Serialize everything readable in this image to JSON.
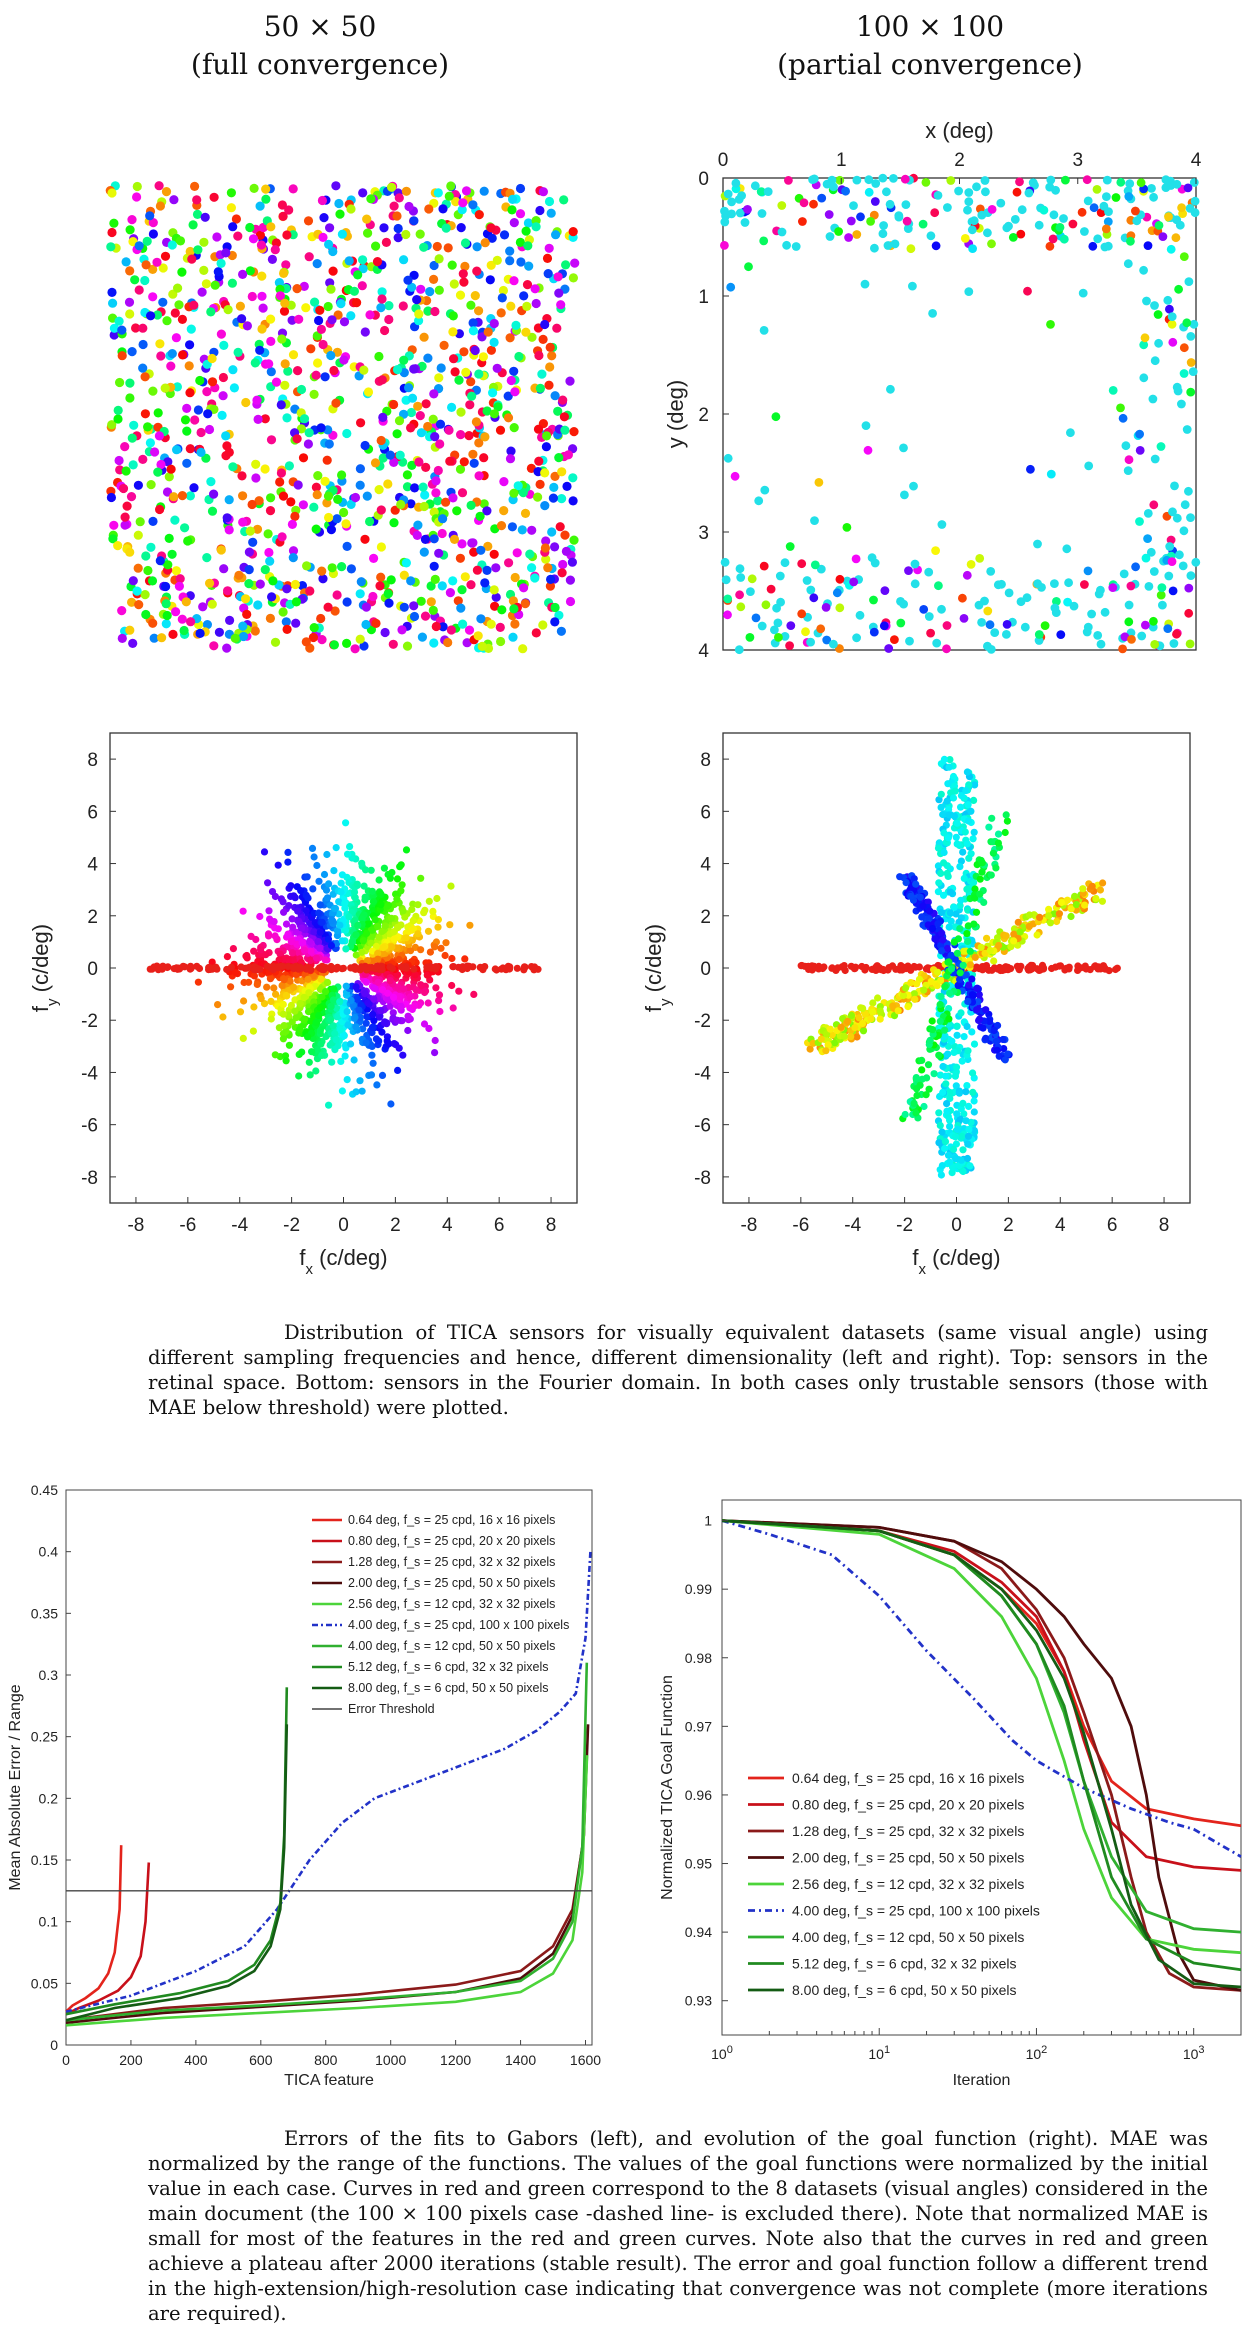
{
  "titles": {
    "left_line1": "50 × 50",
    "left_line2": "(full convergence)",
    "right_line1": "100 × 100",
    "right_line2": "(partial convergence)"
  },
  "captions": {
    "figure1": "Distribution of TICA sensors for visually equivalent datasets (same visual angle) using different sampling frequencies and hence, different dimensionality (left and right). Top: sensors in the retinal space. Bottom: sensors in the Fourier domain. In both cases only trustable sensors (those with MAE below threshold) were plotted.",
    "figure2": "Errors of the fits to Gabors (left), and evolution of the goal function (right). MAE was normalized by the range of the functions. The values of the goal functions were normalized by the initial value in each case. Curves in red and green correspond to the 8 datasets (visual angles) considered in the main document (the 100 × 100 pixels case -dashed line- is excluded there). Note that normalized MAE is small for most of the features in the red and green curves. Note also that the curves in red and green achieve a plateau after 2000 iterations (stable result). The error and goal function follow a different trend in the high-extension/high-resolution case indicating that convergence was not complete (more iterations are required)."
  },
  "colors": {
    "d1": "#e3241c",
    "d2": "#c8101a",
    "d3": "#8b1a1a",
    "d4": "#4f0c0c",
    "d5": "#4cd43a",
    "d6": "#2232c8",
    "d7": "#30b030",
    "d8": "#208a20",
    "d9": "#145c14",
    "threshold": "#444444"
  },
  "chart_data": [
    {
      "id": "retinal_50",
      "type": "scatter",
      "title": "50 × 50 (full convergence)",
      "xlabel": "",
      "ylabel": "",
      "xlim": [
        0,
        4
      ],
      "ylim": [
        0,
        4
      ],
      "axes_visible": false,
      "description_of_points": "dense uniform field of sensors colored by orientation (hue wheel)",
      "n_points": 1300
    },
    {
      "id": "retinal_100",
      "type": "scatter",
      "title": "100 × 100 (partial convergence)",
      "xlabel": "x (deg)",
      "ylabel": "y (deg)",
      "xlim": [
        0,
        4
      ],
      "ylim": [
        4,
        0
      ],
      "xticks": [
        "0",
        "1",
        "2",
        "3",
        "4"
      ],
      "yticks": [
        "0",
        "1",
        "2",
        "3",
        "4"
      ],
      "n_points": 480,
      "distribution": "concentrated along top band (y 0–0.6), right edge (x 3.4–4) and bottom band (y 3.2–4), sparse center"
    },
    {
      "id": "fourier_50",
      "type": "scatter",
      "xlabel": "f_x (c/deg)",
      "ylabel": "f_y (c/deg)",
      "xlim": [
        -9,
        9
      ],
      "ylim": [
        -9,
        9
      ],
      "xticks": [
        "-8",
        "-6",
        "-4",
        "-2",
        "0",
        "2",
        "4",
        "6",
        "8"
      ],
      "yticks": [
        "8",
        "6",
        "4",
        "2",
        "0",
        "-2",
        "-4",
        "-6",
        "-8"
      ],
      "distribution": "isotropic cloud radius ≈ 3–4 c/deg, colored by orientation; horizontal red line of points to ±7.5"
    },
    {
      "id": "fourier_100",
      "type": "scatter",
      "xlabel": "f_x (c/deg)",
      "ylabel": "f_y (c/deg)",
      "xlim": [
        -9,
        9
      ],
      "ylim": [
        -9,
        9
      ],
      "xticks": [
        "-8",
        "-6",
        "-4",
        "-2",
        "0",
        "2",
        "4",
        "6",
        "8"
      ],
      "yticks": [
        "8",
        "6",
        "4",
        "2",
        "0",
        "-2",
        "-4",
        "-6",
        "-8"
      ],
      "distribution": "cross-shaped: vertical cyan band to ±8, horizontal red line to ±6, diagonal yellow-green and blue arms"
    },
    {
      "id": "mae",
      "type": "line",
      "xlabel": "TICA feature",
      "ylabel": "Mean Absolute Error / Range",
      "xlim": [
        0,
        1620
      ],
      "ylim": [
        0,
        0.45
      ],
      "xticks": [
        "0",
        "200",
        "400",
        "600",
        "800",
        "1000",
        "1200",
        "1400",
        "1600"
      ],
      "yticks": [
        "0",
        "0.05",
        "0.1",
        "0.15",
        "0.2",
        "0.25",
        "0.3",
        "0.35",
        "0.4",
        "0.45"
      ],
      "threshold": 0.125,
      "series": [
        {
          "name": "0.64 deg, f_s = 25 cpd, 16 x 16 pixels",
          "color": "#e3241c",
          "dash": false,
          "x": [
            0,
            20,
            60,
            100,
            130,
            150,
            165,
            170
          ],
          "y": [
            0.027,
            0.032,
            0.038,
            0.046,
            0.058,
            0.075,
            0.11,
            0.162
          ]
        },
        {
          "name": "0.80 deg, f_s = 25 cpd, 20 x 20 pixels",
          "color": "#c8101a",
          "dash": false,
          "x": [
            0,
            40,
            100,
            160,
            200,
            230,
            245,
            255
          ],
          "y": [
            0.025,
            0.03,
            0.036,
            0.044,
            0.055,
            0.072,
            0.1,
            0.148
          ]
        },
        {
          "name": "1.28 deg, f_s = 25 cpd, 32 x 32 pixels",
          "color": "#8b1a1a",
          "dash": false,
          "x": [
            0,
            300,
            600,
            900,
            1200,
            1400,
            1500,
            1560,
            1590,
            1600
          ],
          "y": [
            0.02,
            0.03,
            0.035,
            0.041,
            0.049,
            0.06,
            0.08,
            0.11,
            0.16,
            0.21
          ]
        },
        {
          "name": "2.00 deg, f_s = 25 cpd, 50 x 50 pixels",
          "color": "#4f0c0c",
          "dash": false,
          "x": [
            0,
            300,
            600,
            900,
            1200,
            1400,
            1500,
            1560,
            1595,
            1608
          ],
          "y": [
            0.018,
            0.026,
            0.031,
            0.036,
            0.043,
            0.054,
            0.074,
            0.105,
            0.17,
            0.26
          ]
        },
        {
          "name": "2.56 deg, f_s = 12 cpd, 32 x 32 pixels",
          "color": "#4cd43a",
          "dash": false,
          "x": [
            0,
            300,
            600,
            900,
            1200,
            1400,
            1500,
            1560,
            1590,
            1605
          ],
          "y": [
            0.016,
            0.022,
            0.026,
            0.03,
            0.035,
            0.043,
            0.058,
            0.085,
            0.14,
            0.235
          ]
        },
        {
          "name": "4.00 deg, f_s = 25 cpd, 100 x 100 pixels",
          "color": "#2232c8",
          "dash": true,
          "x": [
            0,
            200,
            400,
            550,
            650,
            750,
            850,
            950,
            1050,
            1200,
            1350,
            1450,
            1520,
            1570,
            1600,
            1615
          ],
          "y": [
            0.027,
            0.04,
            0.06,
            0.08,
            0.11,
            0.15,
            0.18,
            0.2,
            0.21,
            0.225,
            0.24,
            0.255,
            0.27,
            0.285,
            0.33,
            0.4
          ]
        },
        {
          "name": "4.00 deg, f_s = 12 cpd, 50 x 50 pixels",
          "color": "#30b030",
          "dash": false,
          "x": [
            0,
            300,
            600,
            900,
            1200,
            1400,
            1500,
            1560,
            1590,
            1604
          ],
          "y": [
            0.02,
            0.028,
            0.032,
            0.037,
            0.043,
            0.052,
            0.07,
            0.1,
            0.16,
            0.31
          ]
        },
        {
          "name": "5.12 deg, f_s = 6 cpd, 32 x 32 pixels",
          "color": "#208a20",
          "dash": false,
          "x": [
            0,
            150,
            350,
            500,
            580,
            630,
            660,
            672,
            680
          ],
          "y": [
            0.025,
            0.033,
            0.042,
            0.052,
            0.065,
            0.085,
            0.115,
            0.17,
            0.29
          ]
        },
        {
          "name": "8.00 deg, f_s = 6 cpd, 50 x 50 pixels",
          "color": "#145c14",
          "dash": false,
          "x": [
            0,
            150,
            350,
            500,
            580,
            630,
            660,
            672,
            680
          ],
          "y": [
            0.02,
            0.03,
            0.038,
            0.048,
            0.06,
            0.08,
            0.11,
            0.16,
            0.26
          ]
        },
        {
          "name": "Error Threshold",
          "color": "#444444",
          "dash": false,
          "x": [
            0,
            1620
          ],
          "y": [
            0.125,
            0.125
          ]
        }
      ]
    },
    {
      "id": "goal",
      "type": "line",
      "xlabel": "Iteration",
      "ylabel": "Normalized TICA Goal Function",
      "xscale": "log",
      "xlim": [
        1,
        2000
      ],
      "ylim": [
        0.925,
        1.003
      ],
      "xticks": [
        "10^0",
        "10^1",
        "10^2",
        "10^3"
      ],
      "yticks": [
        "1",
        "0.99",
        "0.98",
        "0.97",
        "0.96",
        "0.95",
        "0.94",
        "0.93"
      ],
      "series": [
        {
          "name": "0.64 deg, f_s = 25 cpd, 16 x 16 pixels",
          "color": "#e3241c",
          "dash": false,
          "x": [
            1,
            10,
            30,
            60,
            100,
            150,
            200,
            300,
            500,
            1000,
            2000
          ],
          "y": [
            1,
            0.9985,
            0.995,
            0.99,
            0.985,
            0.978,
            0.97,
            0.962,
            0.958,
            0.9565,
            0.9555
          ]
        },
        {
          "name": "0.80 deg, f_s = 25 cpd, 20 x 20 pixels",
          "color": "#c8101a",
          "dash": false,
          "x": [
            1,
            10,
            30,
            60,
            100,
            150,
            200,
            300,
            500,
            1000,
            2000
          ],
          "y": [
            1,
            0.9985,
            0.9955,
            0.991,
            0.986,
            0.978,
            0.968,
            0.956,
            0.951,
            0.9495,
            0.949
          ]
        },
        {
          "name": "1.28 deg, f_s = 25 cpd, 32 x 32 pixels",
          "color": "#8b1a1a",
          "dash": false,
          "x": [
            1,
            10,
            30,
            60,
            100,
            150,
            200,
            300,
            400,
            500,
            700,
            1000,
            2000
          ],
          "y": [
            1,
            0.999,
            0.997,
            0.993,
            0.987,
            0.98,
            0.972,
            0.96,
            0.948,
            0.94,
            0.934,
            0.932,
            0.9315
          ]
        },
        {
          "name": "2.00 deg, f_s = 25 cpd, 50 x 50 pixels",
          "color": "#4f0c0c",
          "dash": false,
          "x": [
            1,
            10,
            30,
            60,
            100,
            150,
            200,
            300,
            400,
            500,
            600,
            800,
            1000,
            2000
          ],
          "y": [
            1,
            0.999,
            0.997,
            0.994,
            0.99,
            0.986,
            0.982,
            0.977,
            0.97,
            0.96,
            0.948,
            0.937,
            0.933,
            0.9315
          ]
        },
        {
          "name": "2.56 deg, f_s = 12 cpd, 32 x 32 pixels",
          "color": "#4cd43a",
          "dash": false,
          "x": [
            1,
            10,
            30,
            60,
            100,
            150,
            200,
            300,
            500,
            1000,
            2000
          ],
          "y": [
            1,
            0.998,
            0.993,
            0.986,
            0.977,
            0.965,
            0.955,
            0.945,
            0.939,
            0.9375,
            0.937
          ]
        },
        {
          "name": "4.00 deg, f_s = 25 cpd, 100 x 100 pixels",
          "color": "#2232c8",
          "dash": true,
          "x": [
            1,
            2,
            5,
            10,
            20,
            40,
            70,
            100,
            200,
            400,
            700,
            1000,
            2000
          ],
          "y": [
            1,
            0.998,
            0.995,
            0.989,
            0.981,
            0.974,
            0.968,
            0.965,
            0.961,
            0.958,
            0.956,
            0.955,
            0.951
          ]
        },
        {
          "name": "4.00 deg, f_s = 12 cpd, 50 x 50 pixels",
          "color": "#30b030",
          "dash": false,
          "x": [
            1,
            10,
            30,
            60,
            100,
            150,
            200,
            300,
            500,
            1000,
            2000
          ],
          "y": [
            1,
            0.9985,
            0.995,
            0.989,
            0.982,
            0.972,
            0.962,
            0.951,
            0.943,
            0.9405,
            0.94
          ]
        },
        {
          "name": "5.12 deg, f_s = 6 cpd, 32 x 32 pixels",
          "color": "#208a20",
          "dash": false,
          "x": [
            1,
            10,
            30,
            60,
            100,
            150,
            200,
            300,
            500,
            1000,
            2000
          ],
          "y": [
            1,
            0.9985,
            0.995,
            0.989,
            0.982,
            0.973,
            0.962,
            0.948,
            0.939,
            0.9355,
            0.9345
          ]
        },
        {
          "name": "8.00 deg, f_s = 6 cpd, 50 x 50 pixels",
          "color": "#145c14",
          "dash": false,
          "x": [
            1,
            10,
            30,
            60,
            100,
            150,
            200,
            300,
            400,
            600,
            1000,
            2000
          ],
          "y": [
            1,
            0.9985,
            0.995,
            0.99,
            0.984,
            0.977,
            0.969,
            0.955,
            0.944,
            0.936,
            0.9325,
            0.932
          ]
        }
      ]
    }
  ]
}
